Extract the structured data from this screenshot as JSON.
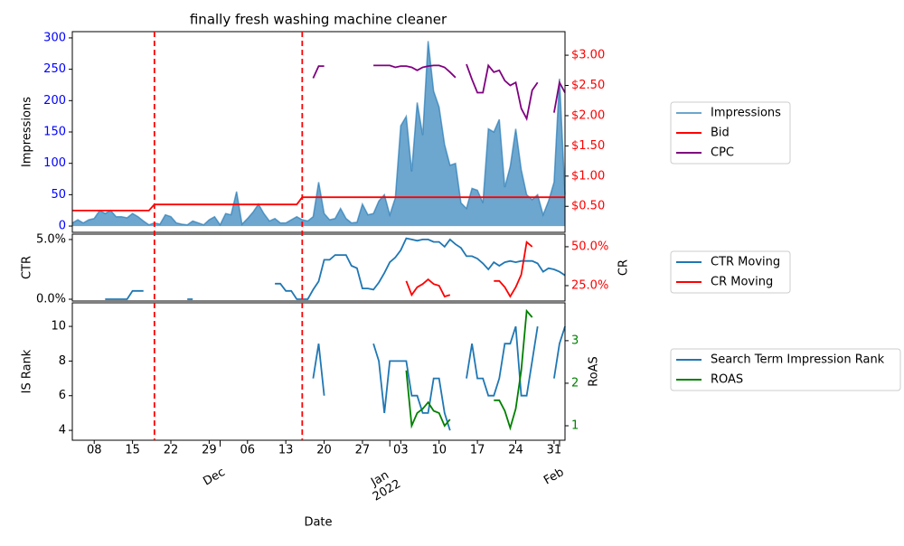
{
  "chart_data": {
    "type": "line",
    "title": "finally fresh washing machine cleaner",
    "xlabel": "Date",
    "x": [
      "2021-11-04",
      "2021-11-05",
      "2021-11-06",
      "2021-11-07",
      "2021-11-08",
      "2021-11-09",
      "2021-11-10",
      "2021-11-11",
      "2021-11-12",
      "2021-11-13",
      "2021-11-14",
      "2021-11-15",
      "2021-11-16",
      "2021-11-17",
      "2021-11-18",
      "2021-11-19",
      "2021-11-20",
      "2021-11-21",
      "2021-11-22",
      "2021-11-23",
      "2021-11-24",
      "2021-11-25",
      "2021-11-26",
      "2021-11-27",
      "2021-11-28",
      "2021-11-29",
      "2021-11-30",
      "2021-12-01",
      "2021-12-02",
      "2021-12-03",
      "2021-12-04",
      "2021-12-05",
      "2021-12-06",
      "2021-12-07",
      "2021-12-08",
      "2021-12-09",
      "2021-12-10",
      "2021-12-11",
      "2021-12-12",
      "2021-12-13",
      "2021-12-14",
      "2021-12-15",
      "2021-12-16",
      "2021-12-17",
      "2021-12-18",
      "2021-12-19",
      "2021-12-20",
      "2021-12-21",
      "2021-12-22",
      "2021-12-23",
      "2021-12-24",
      "2021-12-25",
      "2021-12-26",
      "2021-12-27",
      "2021-12-28",
      "2021-12-29",
      "2021-12-30",
      "2021-12-31",
      "2022-01-01",
      "2022-01-02",
      "2022-01-03",
      "2022-01-04",
      "2022-01-05",
      "2022-01-06",
      "2022-01-07",
      "2022-01-08",
      "2022-01-09",
      "2022-01-10",
      "2022-01-11",
      "2022-01-12",
      "2022-01-13",
      "2022-01-14",
      "2022-01-15",
      "2022-01-16",
      "2022-01-17",
      "2022-01-18",
      "2022-01-19",
      "2022-01-20",
      "2022-01-21",
      "2022-01-22",
      "2022-01-23",
      "2022-01-24",
      "2022-01-25",
      "2022-01-26",
      "2022-01-27",
      "2022-01-28",
      "2022-01-29",
      "2022-01-30",
      "2022-01-31",
      "2022-02-01",
      "2022-02-02"
    ],
    "xlim": [
      "2021-11-04",
      "2022-02-02"
    ],
    "xticks": [
      {
        "value": "2021-11-08",
        "label": "08"
      },
      {
        "value": "2021-11-15",
        "label": "15"
      },
      {
        "value": "2021-11-22",
        "label": "22"
      },
      {
        "value": "2021-11-29",
        "label": "29"
      },
      {
        "value": "2021-12-06",
        "label": "06"
      },
      {
        "value": "2021-12-13",
        "label": "13"
      },
      {
        "value": "2021-12-20",
        "label": "20"
      },
      {
        "value": "2021-12-27",
        "label": "27"
      },
      {
        "value": "2022-01-03",
        "label": "03"
      },
      {
        "value": "2022-01-10",
        "label": "10"
      },
      {
        "value": "2022-01-17",
        "label": "17"
      },
      {
        "value": "2022-01-24",
        "label": "24"
      },
      {
        "value": "2022-01-31",
        "label": "31"
      }
    ],
    "xticks_major": [
      {
        "value": "2021-12-01",
        "label": "Dec"
      },
      {
        "value": "2022-01-01",
        "label": "Jan\n2022"
      },
      {
        "value": "2022-02-01",
        "label": "Feb"
      }
    ],
    "vlines": {
      "x": [
        "2021-11-19",
        "2021-12-16"
      ],
      "color": "red"
    },
    "panels": [
      {
        "ylabel": "Impressions",
        "ylim": [
          -10,
          310
        ],
        "yticks": [
          0,
          50,
          100,
          150,
          200,
          250,
          300
        ],
        "ytick_color": "blue",
        "y2lim": [
          0.07,
          3.39
        ],
        "y2ticks": [
          {
            "value": 0.5,
            "label": "$0.50"
          },
          {
            "value": 1,
            "label": "$1.00"
          },
          {
            "value": 1.5,
            "label": "$1.50"
          },
          {
            "value": 2,
            "label": "$2.00"
          },
          {
            "value": 2.5,
            "label": "$2.50"
          },
          {
            "value": 3,
            "label": "$3.00"
          }
        ],
        "y2tick_color": "red",
        "series": [
          {
            "name": "Impressions",
            "type": "area",
            "color": "#1f77b4",
            "alpha": 0.65,
            "axis": "y",
            "values": [
              5,
              10,
              5,
              10,
              12,
              25,
              20,
              25,
              15,
              15,
              13,
              20,
              15,
              8,
              2,
              5,
              3,
              18,
              15,
              5,
              3,
              2,
              8,
              5,
              2,
              10,
              15,
              2,
              20,
              18,
              55,
              3,
              12,
              22,
              35,
              20,
              8,
              12,
              5,
              5,
              10,
              15,
              10,
              8,
              15,
              70,
              20,
              10,
              12,
              28,
              12,
              5,
              6,
              35,
              18,
              20,
              40,
              50,
              18,
              45,
              160,
              175,
              87,
              197,
              145,
              295,
              215,
              190,
              130,
              97,
              100,
              37,
              28,
              60,
              57,
              37,
              155,
              150,
              170,
              62,
              95,
              155,
              90,
              50,
              42,
              50,
              18,
              40,
              70,
              235,
              50
            ]
          },
          {
            "name": "Bid",
            "type": "line",
            "color": "red",
            "axis": "y2",
            "values": [
              0.43,
              0.43,
              0.43,
              0.43,
              0.43,
              0.43,
              0.43,
              0.43,
              0.43,
              0.43,
              0.43,
              0.43,
              0.43,
              0.43,
              0.43,
              0.53,
              0.53,
              0.53,
              0.53,
              0.53,
              0.53,
              0.53,
              0.53,
              0.53,
              0.53,
              0.53,
              0.53,
              0.53,
              0.53,
              0.53,
              0.53,
              0.53,
              0.53,
              0.53,
              0.53,
              0.53,
              0.53,
              0.53,
              0.53,
              0.53,
              0.53,
              0.53,
              0.65,
              0.65,
              0.65,
              0.65,
              0.65,
              0.65,
              0.65,
              0.65,
              0.65,
              0.65,
              0.65,
              0.65,
              0.65,
              0.65,
              0.65,
              0.65,
              0.65,
              0.65,
              0.65,
              0.65,
              0.65,
              0.65,
              0.65,
              0.65,
              0.65,
              0.65,
              0.65,
              0.65,
              0.65,
              0.65,
              0.65,
              0.65,
              0.65,
              0.65,
              0.65,
              0.65,
              0.65,
              0.65,
              0.65,
              0.65,
              0.65,
              0.65,
              0.65,
              0.65,
              0.65,
              0.65,
              0.65,
              0.65,
              0.65
            ]
          },
          {
            "name": "CPC",
            "type": "line",
            "color": "purple",
            "axis": "y2",
            "values": [
              null,
              null,
              null,
              null,
              null,
              null,
              null,
              null,
              null,
              null,
              null,
              null,
              null,
              null,
              null,
              null,
              null,
              null,
              null,
              null,
              null,
              null,
              null,
              null,
              null,
              null,
              null,
              null,
              null,
              null,
              null,
              null,
              null,
              null,
              null,
              null,
              null,
              null,
              null,
              null,
              null,
              null,
              null,
              null,
              2.62,
              2.82,
              2.82,
              null,
              null,
              null,
              null,
              null,
              null,
              null,
              null,
              2.83,
              2.83,
              2.83,
              2.83,
              2.8,
              2.82,
              2.82,
              2.8,
              2.75,
              2.8,
              2.82,
              2.83,
              2.83,
              2.8,
              2.72,
              2.63,
              null,
              2.85,
              2.6,
              2.38,
              2.38,
              2.83,
              2.72,
              2.75,
              2.58,
              2.5,
              2.55,
              2.12,
              1.95,
              2.42,
              2.55,
              null,
              null,
              2.05,
              2.55,
              2.38
            ]
          }
        ]
      },
      {
        "ylabel": "CTR",
        "y2label": "CR",
        "ylim": [
          -0.15,
          5.45
        ],
        "yticks": [
          {
            "value": 0,
            "label": "0.0%"
          },
          {
            "value": 5,
            "label": "5.0%"
          }
        ],
        "ytick_color": "black",
        "y2lim": [
          15.1,
          58.1
        ],
        "y2ticks": [
          {
            "value": 25,
            "label": "25.0%"
          },
          {
            "value": 50,
            "label": "50.0%"
          }
        ],
        "y2tick_color": "red",
        "series": [
          {
            "name": "CTR Moving",
            "type": "line",
            "color": "#1f77b4",
            "axis": "y",
            "values": [
              null,
              null,
              null,
              null,
              null,
              null,
              0,
              0,
              0,
              0,
              0,
              0.7,
              0.7,
              0.7,
              null,
              null,
              null,
              null,
              null,
              null,
              null,
              0,
              0,
              null,
              null,
              null,
              null,
              null,
              null,
              null,
              null,
              null,
              null,
              null,
              null,
              null,
              null,
              1.3,
              1.3,
              0.7,
              0.7,
              0,
              0,
              0,
              0.8,
              1.5,
              3.3,
              3.3,
              3.7,
              3.7,
              3.7,
              2.8,
              2.6,
              0.9,
              0.9,
              0.8,
              1.4,
              2.2,
              3.1,
              3.5,
              4.1,
              5.1,
              5.0,
              4.9,
              5.0,
              5.0,
              4.8,
              4.8,
              4.4,
              5.0,
              4.6,
              4.3,
              3.6,
              3.6,
              3.4,
              3.0,
              2.5,
              3.1,
              2.8,
              3.1,
              3.2,
              3.1,
              3.2,
              3.2,
              3.2,
              3.0,
              2.3,
              2.6,
              2.5,
              2.3,
              2.0
            ]
          },
          {
            "name": "CR Moving",
            "type": "line",
            "color": "red",
            "axis": "y2",
            "values": [
              null,
              null,
              null,
              null,
              null,
              null,
              null,
              null,
              null,
              null,
              null,
              null,
              null,
              null,
              null,
              null,
              null,
              null,
              null,
              null,
              null,
              null,
              null,
              null,
              null,
              null,
              null,
              null,
              null,
              null,
              null,
              null,
              null,
              null,
              null,
              null,
              null,
              null,
              null,
              null,
              null,
              null,
              null,
              null,
              null,
              null,
              null,
              null,
              null,
              null,
              null,
              null,
              null,
              null,
              null,
              null,
              null,
              null,
              null,
              null,
              null,
              28,
              19,
              24,
              26,
              29,
              26,
              25,
              18,
              19,
              null,
              null,
              null,
              null,
              null,
              null,
              null,
              28,
              28,
              24,
              18,
              24,
              32,
              53,
              50,
              null,
              null,
              null,
              null,
              null,
              null
            ]
          }
        ]
      },
      {
        "ylabel": "IS Rank",
        "y2label": "RoAS",
        "ylim": [
          3.43,
          11.36
        ],
        "yticks": [
          4,
          6,
          8,
          10
        ],
        "ytick_color": "black",
        "y2lim": [
          0.66,
          3.89
        ],
        "y2ticks": [
          1,
          2,
          3
        ],
        "y2tick_color": "green",
        "series": [
          {
            "name": "Search Term Impression Rank",
            "type": "line",
            "color": "#1f77b4",
            "axis": "y",
            "values": [
              null,
              null,
              null,
              null,
              null,
              null,
              null,
              null,
              null,
              null,
              null,
              null,
              null,
              null,
              null,
              null,
              null,
              null,
              null,
              null,
              null,
              null,
              null,
              null,
              null,
              null,
              null,
              null,
              null,
              null,
              null,
              null,
              null,
              null,
              null,
              null,
              null,
              null,
              null,
              null,
              null,
              null,
              null,
              null,
              7,
              9,
              6,
              null,
              null,
              null,
              null,
              null,
              null,
              null,
              null,
              9,
              8,
              5,
              8,
              8,
              8,
              8,
              6,
              6,
              5,
              5,
              7,
              7,
              5,
              4,
              null,
              null,
              7,
              9,
              7,
              7,
              6,
              6,
              7,
              9,
              9,
              10,
              6,
              6,
              8,
              10,
              null,
              null,
              7,
              9,
              10
            ]
          },
          {
            "name": "ROAS",
            "type": "line",
            "color": "green",
            "axis": "y2",
            "values": [
              null,
              null,
              null,
              null,
              null,
              null,
              null,
              null,
              null,
              null,
              null,
              null,
              null,
              null,
              null,
              null,
              null,
              null,
              null,
              null,
              null,
              null,
              null,
              null,
              null,
              null,
              null,
              null,
              null,
              null,
              null,
              null,
              null,
              null,
              null,
              null,
              null,
              null,
              null,
              null,
              null,
              null,
              null,
              null,
              null,
              null,
              null,
              null,
              null,
              null,
              null,
              null,
              null,
              null,
              null,
              null,
              null,
              null,
              null,
              null,
              null,
              2.3,
              1.0,
              1.3,
              1.4,
              1.55,
              1.35,
              1.3,
              1.0,
              1.15,
              null,
              null,
              null,
              null,
              null,
              null,
              null,
              1.6,
              1.6,
              1.35,
              0.95,
              1.4,
              2.3,
              3.7,
              3.55,
              null,
              null,
              null,
              null,
              null,
              null
            ]
          }
        ]
      }
    ],
    "legend": "outside right"
  }
}
